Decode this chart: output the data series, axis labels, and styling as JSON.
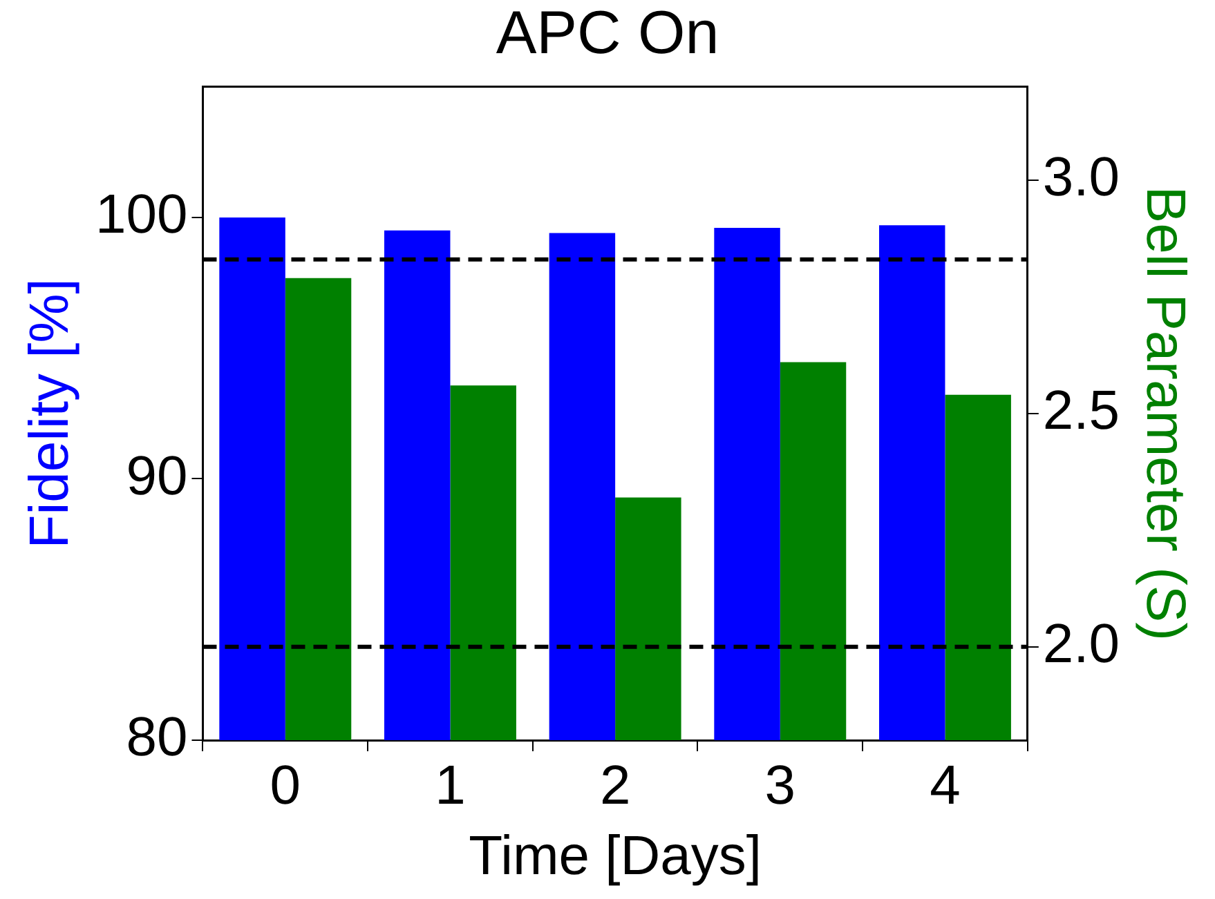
{
  "chart_data": {
    "type": "bar",
    "title": "APC On",
    "xlabel": "Time [Days]",
    "ylabel": "Fidelity [%]",
    "y2label": "Bell Parameter (S)",
    "categories": [
      "0",
      "1",
      "2",
      "3",
      "4"
    ],
    "series": [
      {
        "color": "#0000ff",
        "values": [
          100,
          99.5,
          99.4,
          99.6,
          99.7
        ]
      },
      {
        "color": "#008000",
        "values": [
          2.79,
          2.56,
          2.32,
          2.61,
          2.54
        ],
        "axis": "y2"
      }
    ],
    "ylim": [
      80,
      105
    ],
    "yticks": [
      80,
      90,
      100
    ],
    "y2lim": [
      1.8,
      3.2
    ],
    "y2ticks": [
      {
        "value": 2,
        "label": "2.0"
      },
      2.5,
      {
        "value": 3,
        "label": "3.0"
      }
    ],
    "ref_lines": [
      {
        "axis": "y2",
        "value": 2.83,
        "color": "#000000",
        "line_style": "dashed"
      },
      {
        "axis": "y2",
        "value": 2.0,
        "color": "#000000",
        "line_style": "dashed"
      }
    ],
    "grid": false,
    "legend": false
  }
}
